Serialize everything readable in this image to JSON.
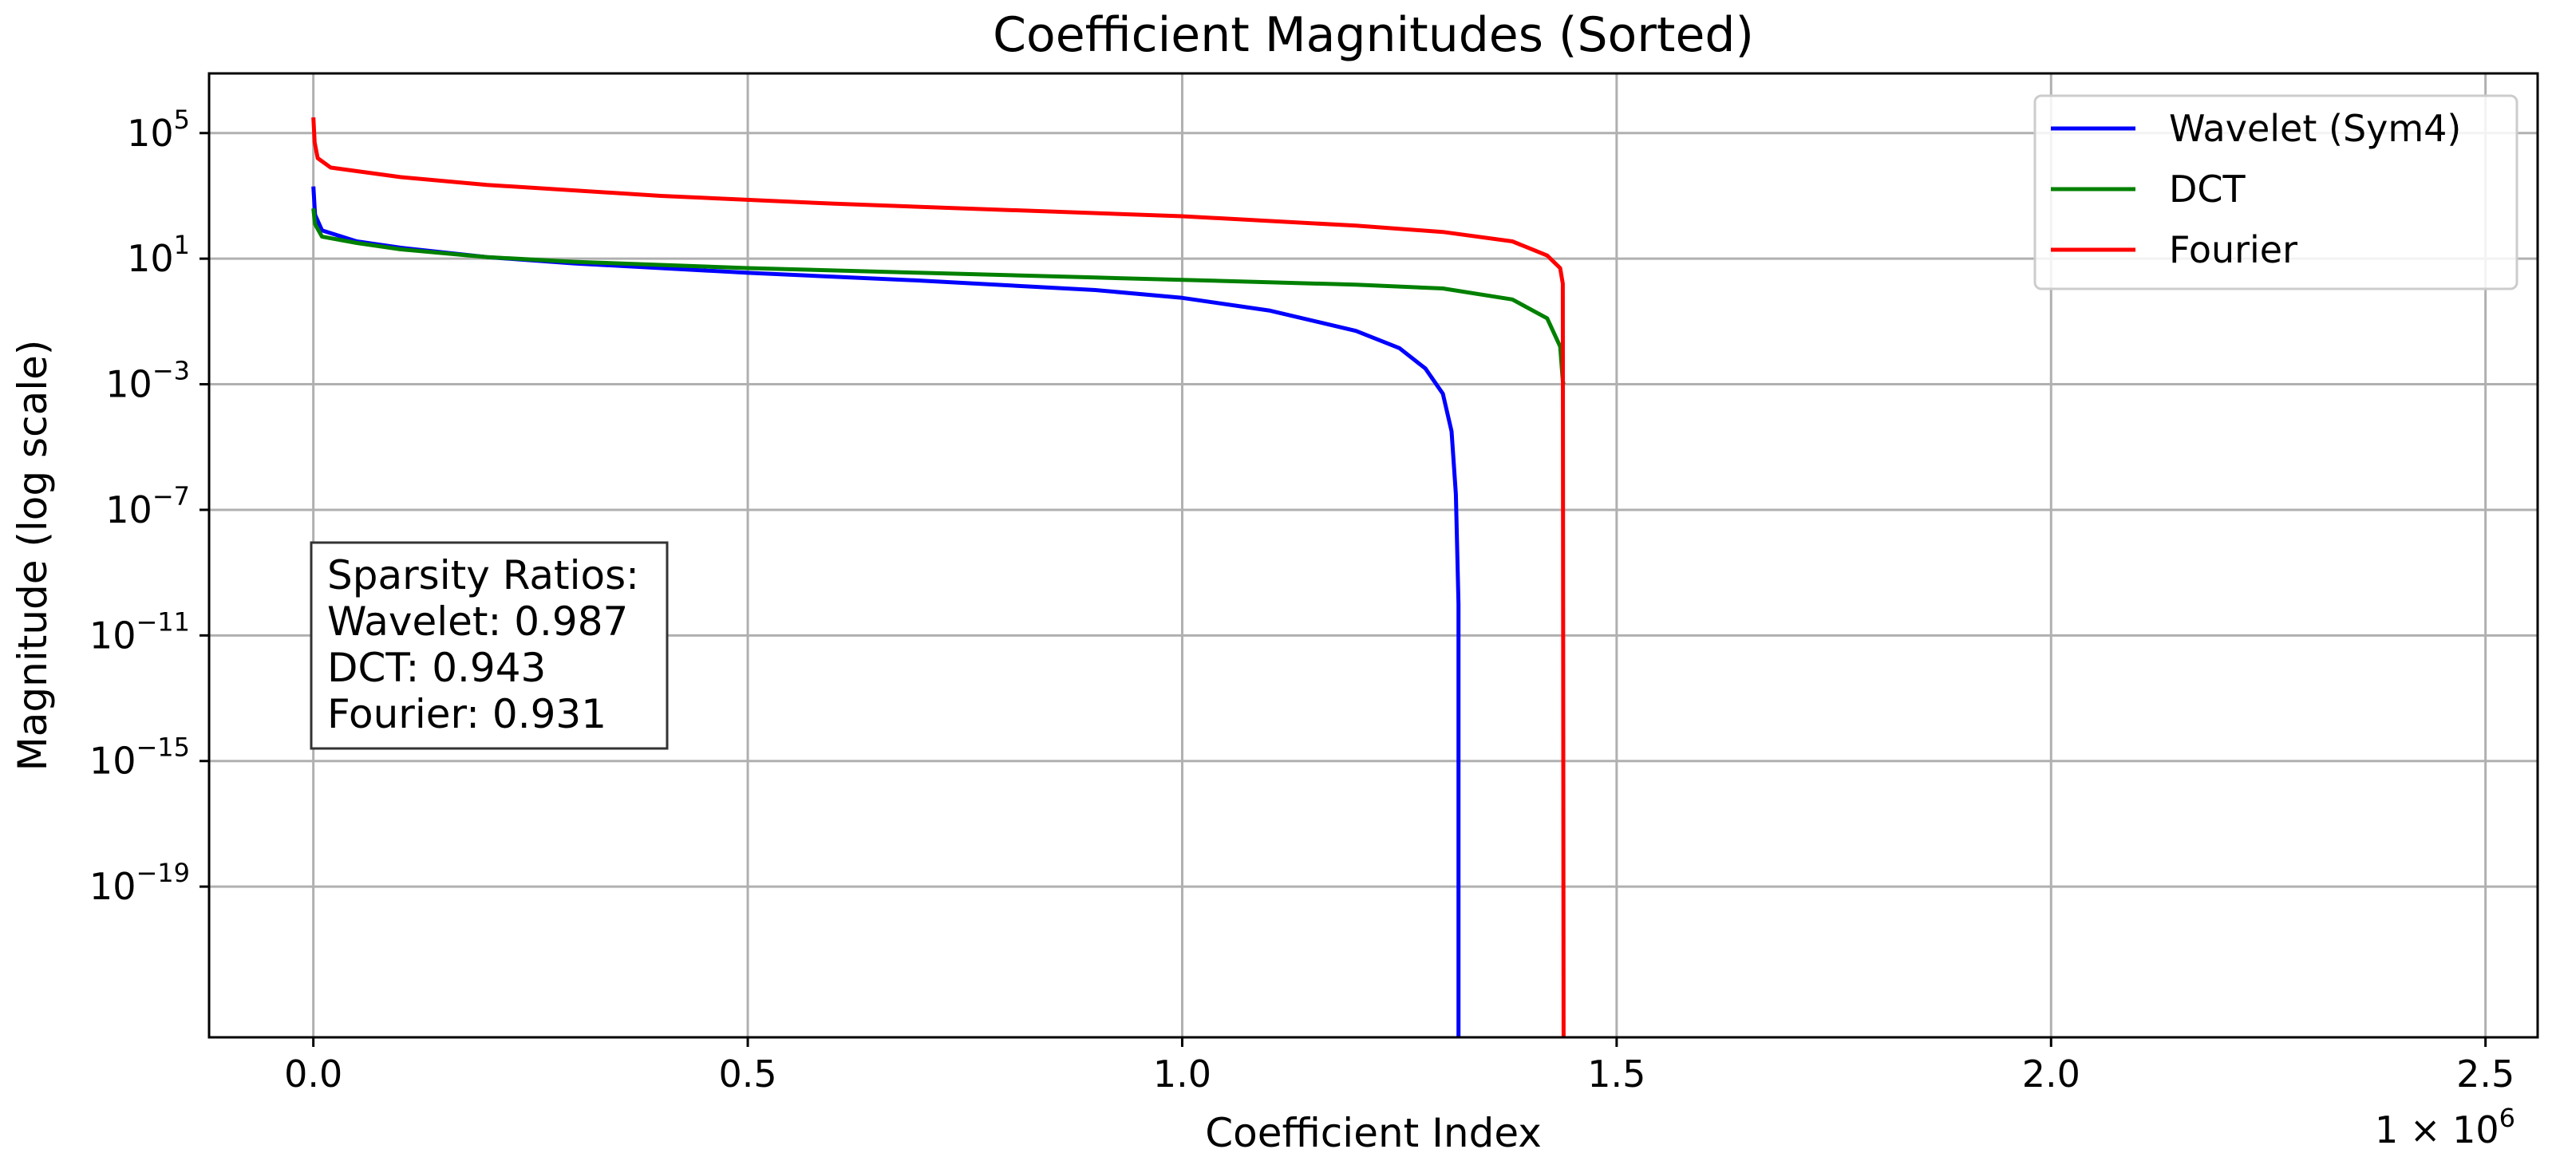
{
  "chart_data": {
    "type": "line",
    "title": "Coefficient Magnitudes (Sorted)",
    "xlabel": "Coefficient Index",
    "ylabel": "Magnitude (log scale)",
    "x_offset_label": "1 × 10",
    "x_offset_exponent": "6",
    "xlim": [
      -120000,
      2560000
    ],
    "ylim_log10": [
      -23.8,
      6.9
    ],
    "y_scale": "log",
    "grid": true,
    "legend_position": "top-right",
    "x_ticks": [
      {
        "value": 0,
        "label": "0.0"
      },
      {
        "value": 500000,
        "label": "0.5"
      },
      {
        "value": 1000000,
        "label": "1.0"
      },
      {
        "value": 1500000,
        "label": "1.5"
      },
      {
        "value": 2000000,
        "label": "2.0"
      },
      {
        "value": 2500000,
        "label": "2.5"
      }
    ],
    "y_ticks": [
      {
        "log10": 5,
        "base": "10",
        "exp": "5"
      },
      {
        "log10": 1,
        "base": "10",
        "exp": "1"
      },
      {
        "log10": -3,
        "base": "10",
        "exp": "−3"
      },
      {
        "log10": -7,
        "base": "10",
        "exp": "−7"
      },
      {
        "log10": -11,
        "base": "10",
        "exp": "−11"
      },
      {
        "log10": -15,
        "base": "10",
        "exp": "−15"
      },
      {
        "log10": -19,
        "base": "10",
        "exp": "−19"
      }
    ],
    "series": [
      {
        "name": "Wavelet (Sym4)",
        "color": "#0000ff",
        "points": [
          [
            0,
            3.3
          ],
          [
            2000,
            2.4
          ],
          [
            10000,
            1.9
          ],
          [
            50000,
            1.55
          ],
          [
            100000,
            1.35
          ],
          [
            200000,
            1.05
          ],
          [
            300000,
            0.85
          ],
          [
            500000,
            0.55
          ],
          [
            700000,
            0.3
          ],
          [
            900000,
            0.0
          ],
          [
            1000000,
            -0.25
          ],
          [
            1100000,
            -0.65
          ],
          [
            1200000,
            -1.3
          ],
          [
            1250000,
            -1.85
          ],
          [
            1280000,
            -2.5
          ],
          [
            1300000,
            -3.3
          ],
          [
            1310000,
            -4.5
          ],
          [
            1315000,
            -6.5
          ],
          [
            1318000,
            -10
          ],
          [
            1318000,
            -24
          ]
        ]
      },
      {
        "name": "DCT",
        "color": "#008000",
        "points": [
          [
            0,
            2.6
          ],
          [
            2000,
            2.1
          ],
          [
            10000,
            1.7
          ],
          [
            50000,
            1.5
          ],
          [
            100000,
            1.3
          ],
          [
            200000,
            1.05
          ],
          [
            300000,
            0.9
          ],
          [
            500000,
            0.7
          ],
          [
            700000,
            0.55
          ],
          [
            900000,
            0.4
          ],
          [
            1100000,
            0.25
          ],
          [
            1200000,
            0.17
          ],
          [
            1300000,
            0.05
          ],
          [
            1380000,
            -0.3
          ],
          [
            1420000,
            -0.9
          ],
          [
            1435000,
            -1.8
          ],
          [
            1438000,
            -2.9
          ],
          [
            1439000,
            -3.0
          ]
        ]
      },
      {
        "name": "Fourier",
        "color": "#ff0000",
        "points": [
          [
            0,
            5.5
          ],
          [
            1500,
            4.7
          ],
          [
            5000,
            4.2
          ],
          [
            20000,
            3.9
          ],
          [
            100000,
            3.6
          ],
          [
            200000,
            3.35
          ],
          [
            400000,
            3.0
          ],
          [
            600000,
            2.75
          ],
          [
            800000,
            2.55
          ],
          [
            1000000,
            2.35
          ],
          [
            1200000,
            2.05
          ],
          [
            1300000,
            1.85
          ],
          [
            1380000,
            1.55
          ],
          [
            1420000,
            1.1
          ],
          [
            1435000,
            0.7
          ],
          [
            1438000,
            0.2
          ],
          [
            1439000,
            -24
          ]
        ]
      }
    ],
    "annotation": {
      "lines": [
        "Sparsity Ratios:",
        "Wavelet: 0.987",
        "DCT: 0.943",
        "Fourier: 0.931"
      ]
    }
  }
}
